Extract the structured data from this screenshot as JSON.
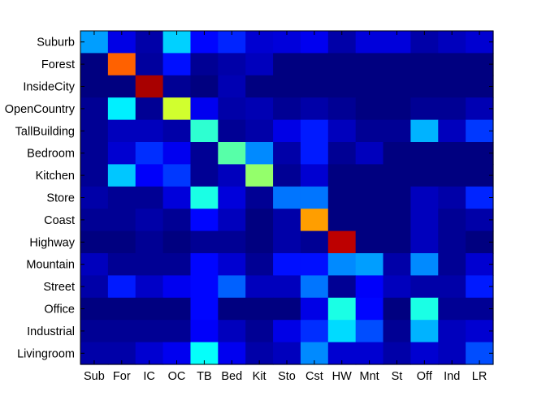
{
  "chart_data": {
    "type": "heatmap",
    "title": "",
    "xlabel": "",
    "ylabel": "",
    "x_categories": [
      "Sub",
      "For",
      "IC",
      "OC",
      "TB",
      "Bed",
      "Kit",
      "Sto",
      "Cst",
      "HW",
      "Mnt",
      "St",
      "Off",
      "Ind",
      "LR"
    ],
    "y_categories": [
      "Suburb",
      "Forest",
      "InsideCity",
      "OpenCountry",
      "TallBuilding",
      "Bedroom",
      "Kitchen",
      "Store",
      "Coast",
      "Highway",
      "Mountain",
      "Street",
      "Office",
      "Industrial",
      "Livingroom"
    ],
    "colormap": "jet",
    "value_range": [
      0,
      1
    ],
    "values": [
      [
        0.28,
        0.1,
        0.04,
        0.33,
        0.13,
        0.16,
        0.08,
        0.09,
        0.11,
        0.04,
        0.09,
        0.09,
        0.04,
        0.06,
        0.08
      ],
      [
        0.0,
        0.78,
        0.03,
        0.14,
        0.02,
        0.04,
        0.06,
        0.0,
        0.0,
        0.0,
        0.0,
        0.0,
        0.0,
        0.0,
        0.0
      ],
      [
        0.0,
        0.0,
        0.96,
        0.02,
        0.0,
        0.05,
        0.0,
        0.0,
        0.0,
        0.0,
        0.0,
        0.0,
        0.0,
        0.0,
        0.0
      ],
      [
        0.02,
        0.36,
        0.02,
        0.58,
        0.11,
        0.04,
        0.05,
        0.02,
        0.04,
        0.02,
        0.0,
        0.0,
        0.02,
        0.02,
        0.05
      ],
      [
        0.02,
        0.06,
        0.06,
        0.04,
        0.42,
        0.02,
        0.04,
        0.1,
        0.15,
        0.06,
        0.02,
        0.02,
        0.3,
        0.06,
        0.18
      ],
      [
        0.02,
        0.08,
        0.17,
        0.11,
        0.02,
        0.46,
        0.26,
        0.04,
        0.15,
        0.02,
        0.06,
        0.0,
        0.0,
        0.0,
        0.0
      ],
      [
        0.02,
        0.32,
        0.12,
        0.18,
        0.02,
        0.06,
        0.52,
        0.02,
        0.08,
        0.0,
        0.0,
        0.0,
        0.0,
        0.0,
        0.0
      ],
      [
        0.04,
        0.02,
        0.02,
        0.09,
        0.4,
        0.09,
        0.02,
        0.24,
        0.24,
        0.0,
        0.0,
        0.0,
        0.06,
        0.04,
        0.16
      ],
      [
        0.02,
        0.02,
        0.04,
        0.02,
        0.13,
        0.06,
        0.0,
        0.04,
        0.72,
        0.0,
        0.0,
        0.0,
        0.06,
        0.02,
        0.04
      ],
      [
        0.0,
        0.0,
        0.02,
        0.0,
        0.02,
        0.02,
        0.0,
        0.04,
        0.02,
        0.94,
        0.0,
        0.0,
        0.06,
        0.02,
        0.0
      ],
      [
        0.06,
        0.02,
        0.02,
        0.02,
        0.13,
        0.08,
        0.02,
        0.14,
        0.14,
        0.26,
        0.28,
        0.04,
        0.26,
        0.02,
        0.08
      ],
      [
        0.04,
        0.15,
        0.07,
        0.11,
        0.13,
        0.22,
        0.06,
        0.06,
        0.24,
        0.02,
        0.12,
        0.06,
        0.04,
        0.04,
        0.15
      ],
      [
        0.0,
        0.0,
        0.0,
        0.0,
        0.13,
        0.0,
        0.0,
        0.0,
        0.1,
        0.4,
        0.13,
        0.0,
        0.4,
        0.02,
        0.02
      ],
      [
        0.02,
        0.02,
        0.02,
        0.02,
        0.12,
        0.06,
        0.02,
        0.1,
        0.17,
        0.34,
        0.2,
        0.02,
        0.3,
        0.06,
        0.08
      ],
      [
        0.04,
        0.04,
        0.08,
        0.11,
        0.38,
        0.11,
        0.04,
        0.06,
        0.26,
        0.08,
        0.08,
        0.04,
        0.08,
        0.06,
        0.2
      ]
    ]
  }
}
